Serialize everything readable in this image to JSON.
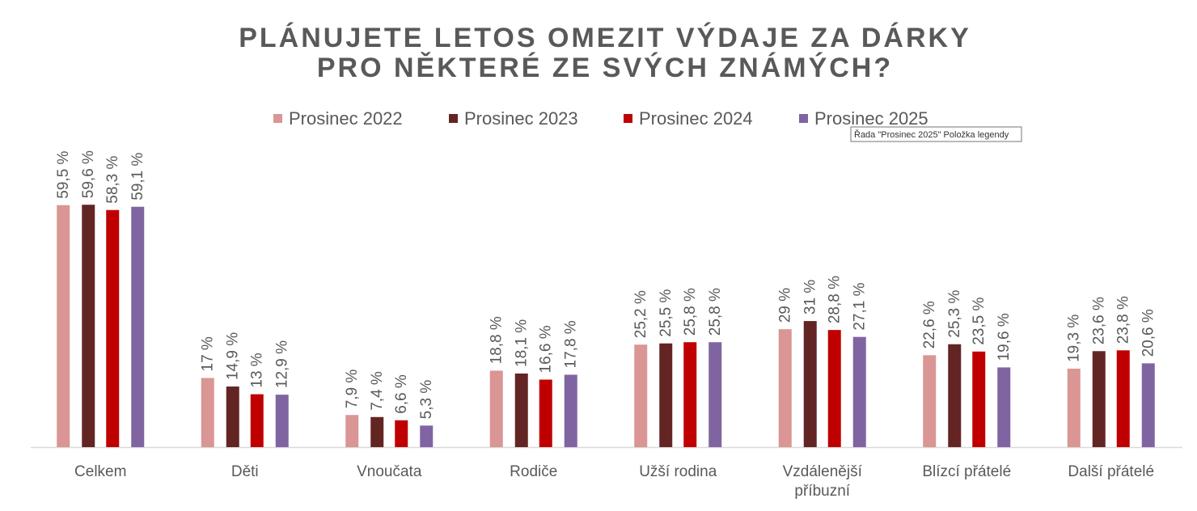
{
  "chart_data": {
    "type": "bar",
    "title": [
      "PLÁNUJETE LETOS OMEZIT VÝDAJE ZA DÁRKY",
      "PRO NĚKTERÉ ZE SVÝCH ZNÁMÝCH?"
    ],
    "categories": [
      "Celkem",
      "Děti",
      "Vnoučata",
      "Rodiče",
      "Užší rodina",
      "Vzdálenější příbuzní",
      "Blízcí přátelé",
      "Další přátelé"
    ],
    "series": [
      {
        "name": "Prosinec 2022",
        "color": "#d99694",
        "values": [
          59.5,
          17,
          7.9,
          18.8,
          25.2,
          29,
          22.6,
          19.3
        ],
        "value_labels": [
          "59,5 %",
          "17 %",
          "7,9 %",
          "18,8 %",
          "25,2 %",
          "29 %",
          "22,6 %",
          "19,3 %"
        ]
      },
      {
        "name": "Prosinec 2023",
        "color": "#632523",
        "values": [
          59.6,
          14.9,
          7.4,
          18.1,
          25.5,
          31,
          25.3,
          23.6
        ],
        "value_labels": [
          "59,6 %",
          "14,9 %",
          "7,4 %",
          "18,1 %",
          "25,5 %",
          "31 %",
          "25,3 %",
          "23,6 %"
        ]
      },
      {
        "name": "Prosinec 2024",
        "color": "#c00000",
        "values": [
          58.3,
          13,
          6.6,
          16.6,
          25.8,
          28.8,
          23.5,
          23.8
        ],
        "value_labels": [
          "58,3 %",
          "13 %",
          "6,6 %",
          "16,6 %",
          "25,8 %",
          "28,8 %",
          "23,5 %",
          "23,8 %"
        ]
      },
      {
        "name": "Prosinec 2025",
        "color": "#8064a2",
        "values": [
          59.1,
          12.9,
          5.3,
          17.8,
          25.8,
          27.1,
          19.6,
          20.6
        ],
        "value_labels": [
          "59,1 %",
          "12,9 %",
          "5,3 %",
          "17,8 %",
          "25,8 %",
          "27,1 %",
          "19,6 %",
          "20,6 %"
        ]
      }
    ],
    "legend": "top",
    "tooltip": "Řada \"Prosinec 2025\" Položka legendy"
  }
}
